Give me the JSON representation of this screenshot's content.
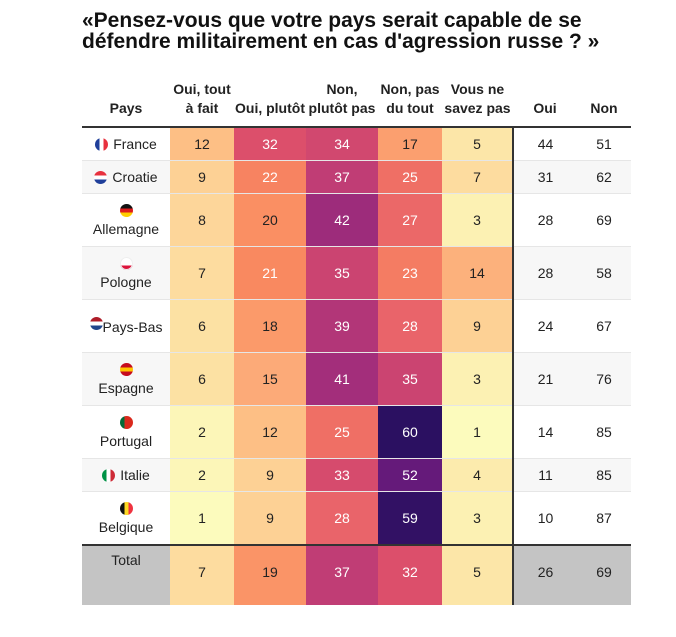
{
  "title": "«Pensez-vous que votre pays serait capable de se défendre militairement en cas d'agression russe ? »",
  "columns": [
    "Pays",
    "Oui, tout à fait",
    "Oui, plutôt",
    "Non, plutôt pas",
    "Non, pas du tout",
    "Vous ne savez pas",
    "Oui",
    "Non"
  ],
  "rows": [
    {
      "pays": "France",
      "flag": "france-flag",
      "values": [
        12,
        32,
        34,
        17,
        5
      ],
      "oui": 44,
      "non": 51
    },
    {
      "pays": "Croatie",
      "flag": "croatia-flag",
      "values": [
        9,
        22,
        37,
        25,
        7
      ],
      "oui": 31,
      "non": 62
    },
    {
      "pays": "Allemagne",
      "flag": "germany-flag",
      "values": [
        8,
        20,
        42,
        27,
        3
      ],
      "oui": 28,
      "non": 69
    },
    {
      "pays": "Pologne",
      "flag": "poland-flag",
      "values": [
        7,
        21,
        35,
        23,
        14
      ],
      "oui": 28,
      "non": 58
    },
    {
      "pays": "Pays-Bas",
      "flag": "netherlands-flag",
      "values": [
        6,
        18,
        39,
        28,
        9
      ],
      "oui": 24,
      "non": 67
    },
    {
      "pays": "Espagne",
      "flag": "spain-flag",
      "values": [
        6,
        15,
        41,
        35,
        3
      ],
      "oui": 21,
      "non": 76
    },
    {
      "pays": "Portugal",
      "flag": "portugal-flag",
      "values": [
        2,
        12,
        25,
        60,
        1
      ],
      "oui": 14,
      "non": 85
    },
    {
      "pays": "Italie",
      "flag": "italy-flag",
      "values": [
        2,
        9,
        33,
        52,
        4
      ],
      "oui": 11,
      "non": 85
    },
    {
      "pays": "Belgique",
      "flag": "belgium-flag",
      "values": [
        1,
        9,
        28,
        59,
        3
      ],
      "oui": 10,
      "non": 87
    }
  ],
  "total": {
    "pays": "Total",
    "values": [
      7,
      19,
      37,
      32,
      5
    ],
    "oui": 26,
    "non": 69
  },
  "color_scale": [
    [
      1,
      "#fcfbbd"
    ],
    [
      5,
      "#fce6a8"
    ],
    [
      9,
      "#fdd195"
    ],
    [
      12,
      "#fdbf85"
    ],
    [
      15,
      "#fcaa78"
    ],
    [
      18,
      "#fb9a6a"
    ],
    [
      21,
      "#f98960"
    ],
    [
      25,
      "#ef6f65"
    ],
    [
      28,
      "#e9646a"
    ],
    [
      32,
      "#dc4f6b"
    ],
    [
      35,
      "#cb4471"
    ],
    [
      37,
      "#c03d75"
    ],
    [
      41,
      "#a32e7b"
    ],
    [
      52,
      "#651a7a"
    ],
    [
      60,
      "#2b1061"
    ]
  ],
  "flag_colors": {
    "france-flag": [
      "#1f3f9a",
      "#ffffff",
      "#e8313e",
      "v"
    ],
    "croatia-flag": [
      "#e8313e",
      "#ffffff",
      "#1f3f9a",
      "h"
    ],
    "germany-flag": [
      "#111111",
      "#dd1c1c",
      "#ffce00",
      "h"
    ],
    "poland-flag": [
      "#ffffff",
      "#ffffff",
      "#dc143c",
      "h"
    ],
    "netherlands-flag": [
      "#ae1c28",
      "#ffffff",
      "#21468b",
      "h"
    ],
    "spain-flag": [
      "#c60b1e",
      "#ffc400",
      "#c60b1e",
      "h"
    ],
    "portugal-flag": [
      "#046a38",
      "#da291c",
      "#da291c",
      "v"
    ],
    "italy-flag": [
      "#009246",
      "#ffffff",
      "#ce2b37",
      "v"
    ],
    "belgium-flag": [
      "#111111",
      "#fdda24",
      "#ef3340",
      "v"
    ]
  }
}
